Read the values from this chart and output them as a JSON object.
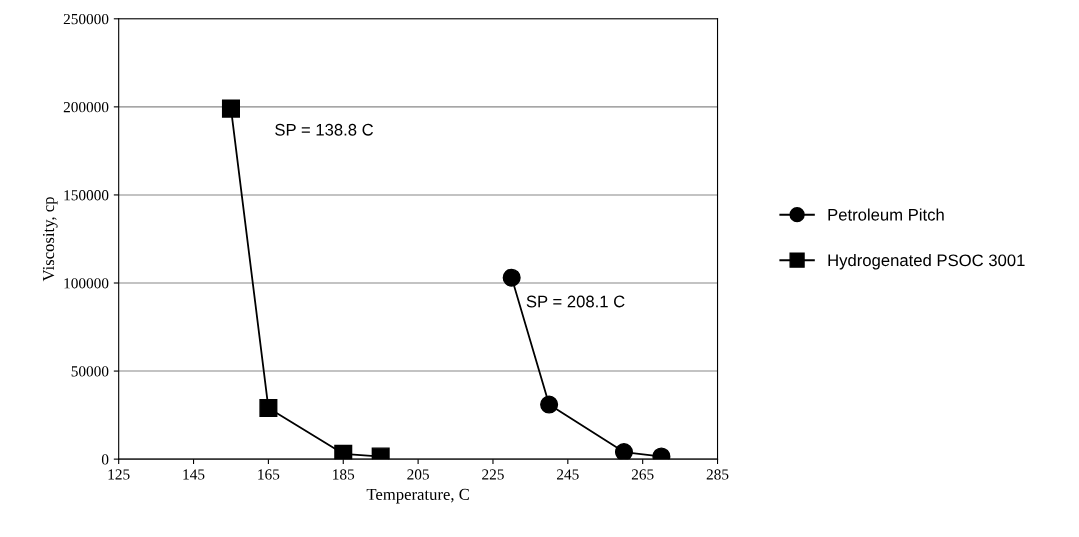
{
  "chart_data": {
    "type": "line",
    "xlabel": "Temperature, C",
    "ylabel": "Viscosity, cp",
    "xlim": [
      125,
      285
    ],
    "xticks": [
      125,
      145,
      165,
      185,
      205,
      225,
      245,
      265,
      285
    ],
    "ylim": [
      0,
      250000
    ],
    "yticks": [
      0,
      50000,
      100000,
      150000,
      200000,
      250000
    ],
    "grid": "y",
    "legend": "right",
    "line_style": "solid",
    "series": [
      {
        "name": "Petroleum Pitch",
        "color": "#000000",
        "marker": "circle",
        "x": [
          230,
          240,
          260,
          270
        ],
        "values": [
          103000,
          31000,
          4000,
          1500
        ]
      },
      {
        "name": "Hydrogenated PSOC 3001",
        "color": "#000000",
        "marker": "square",
        "x": [
          155,
          165,
          185,
          195
        ],
        "values": [
          199000,
          29000,
          3000,
          1500
        ]
      }
    ],
    "annotations": [
      "SP = 138.8 C",
      "SP = 208.1 C"
    ]
  }
}
